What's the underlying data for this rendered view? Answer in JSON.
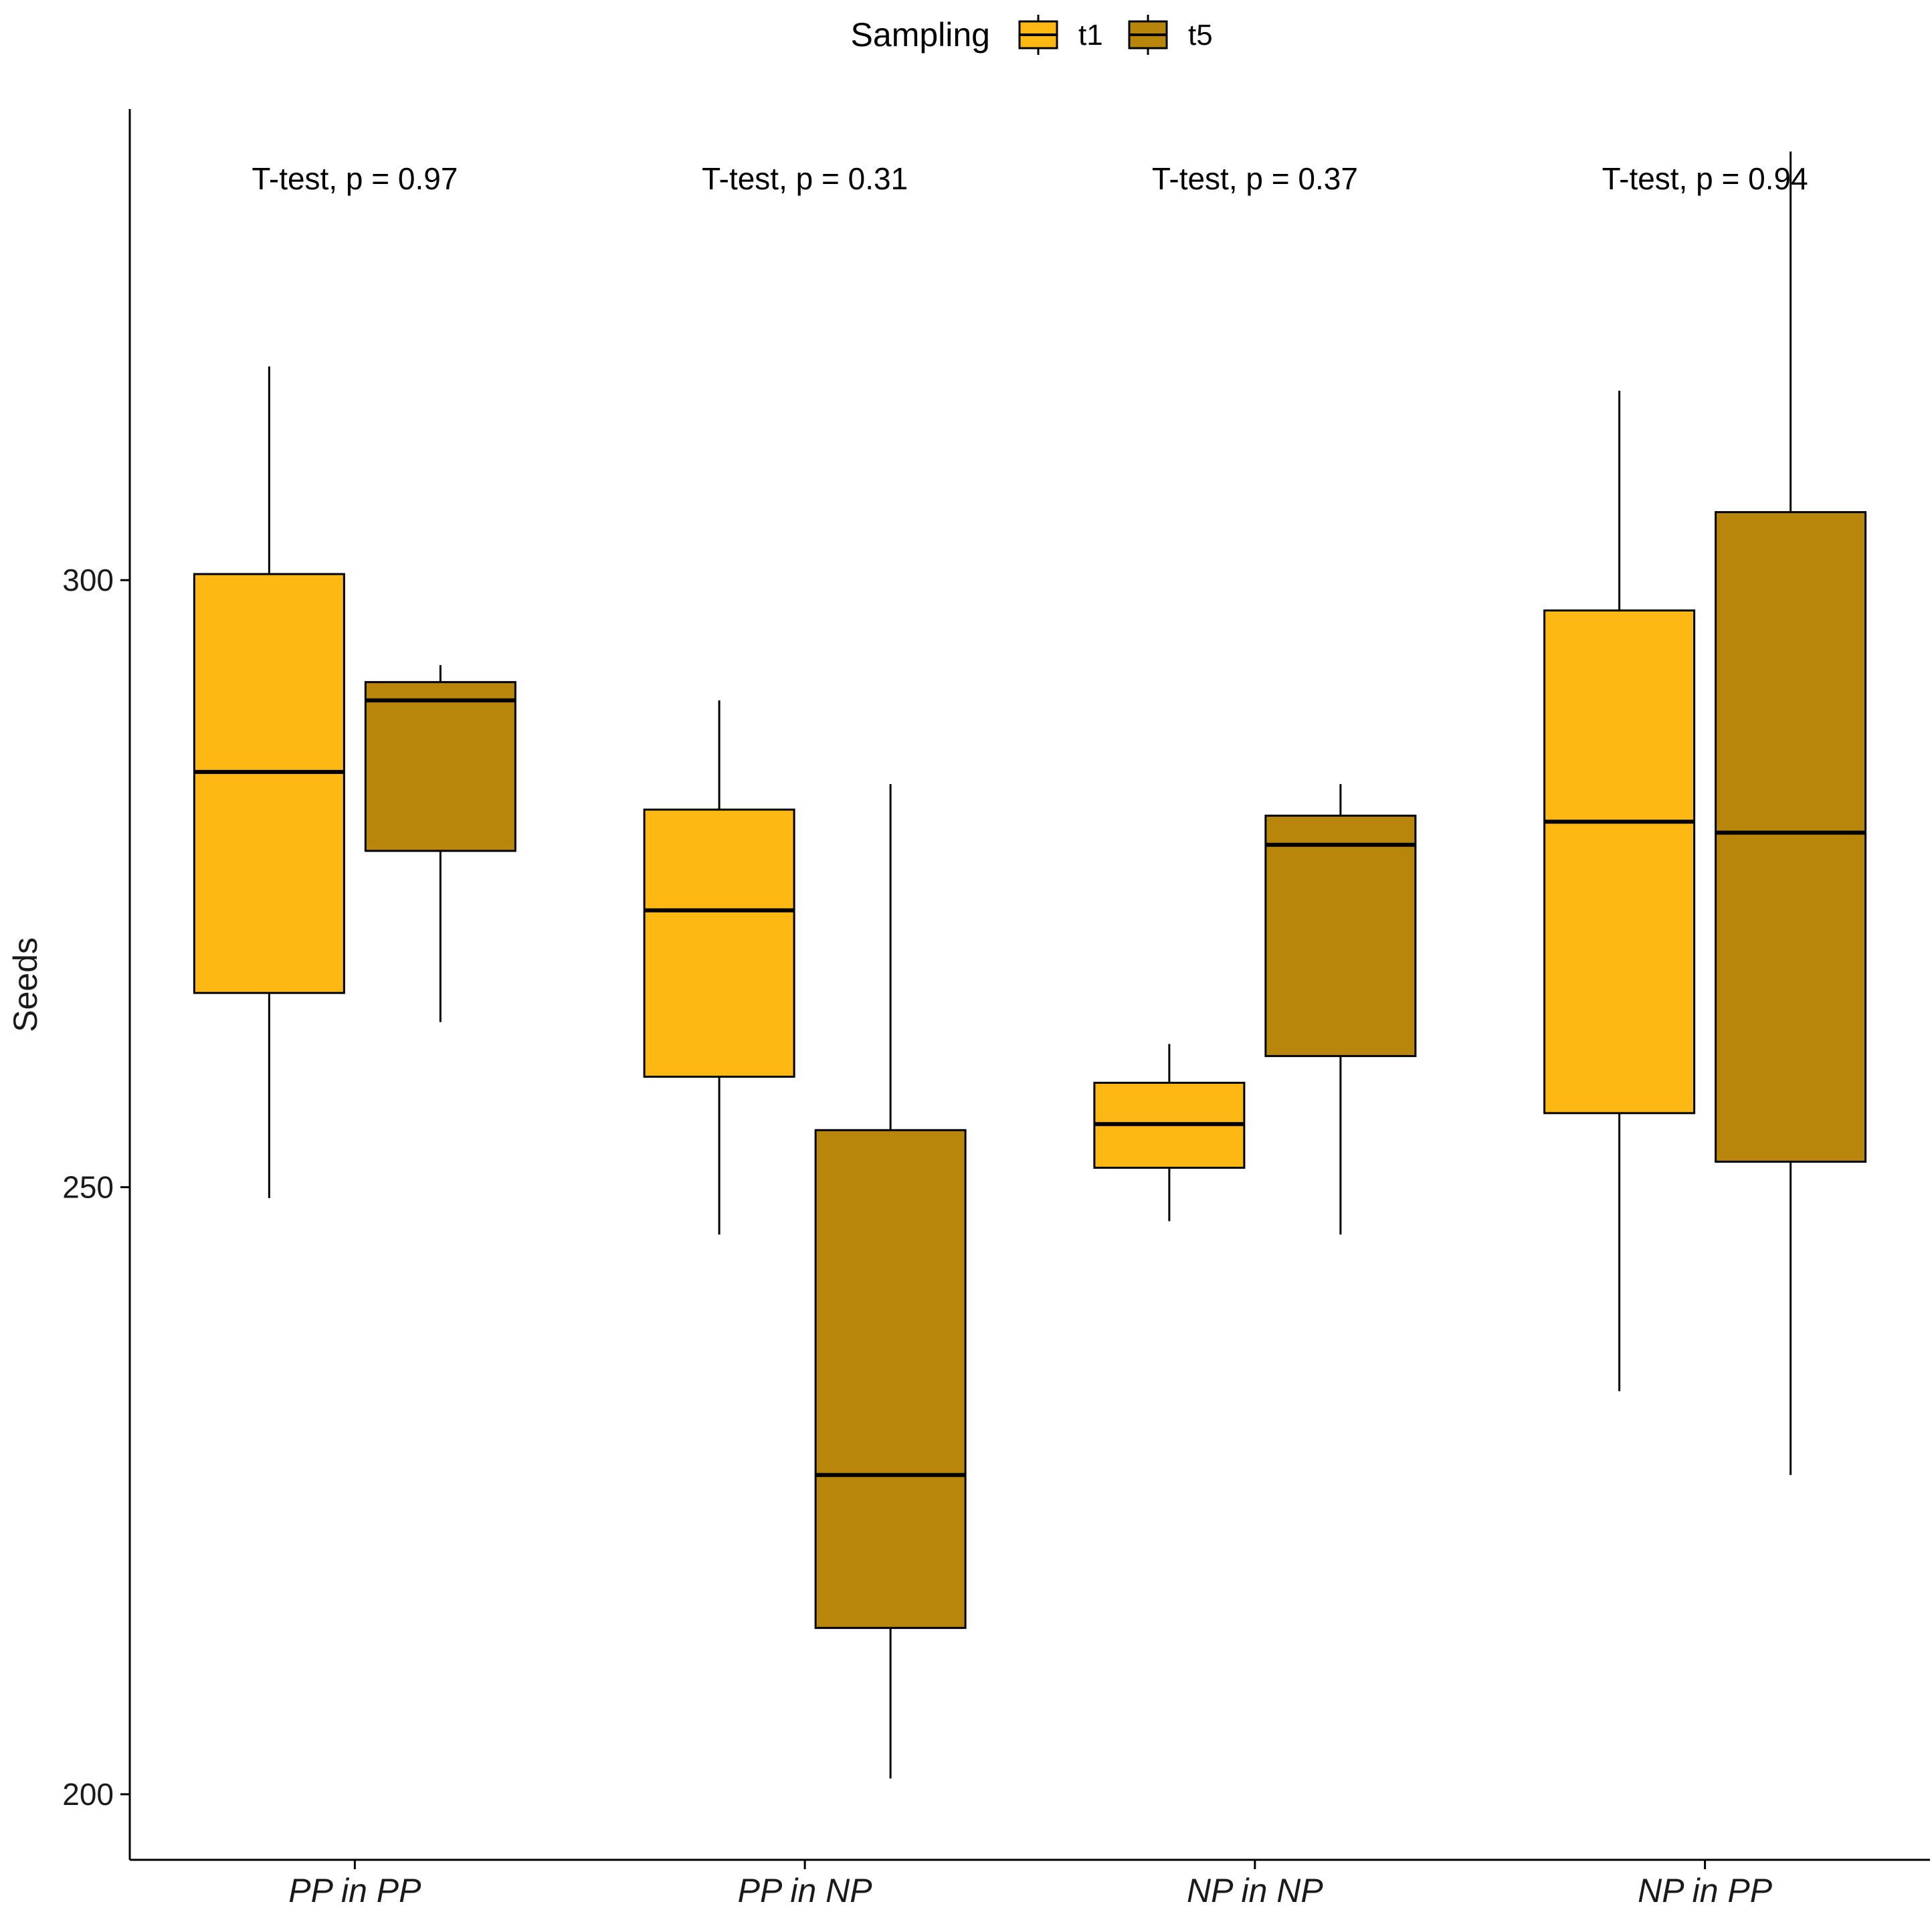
{
  "chart_data": {
    "type": "boxplot",
    "title": "",
    "xlabel": "",
    "ylabel": "Seeds",
    "ylim": [
      194.6,
      338.8
    ],
    "yticks": [
      200,
      250,
      300
    ],
    "categories": [
      "PP in PP",
      "PP in NP",
      "NP in NP",
      "NP in PP"
    ],
    "legend": {
      "title": "Sampling",
      "position": "top",
      "entries": [
        "t1",
        "t5"
      ]
    },
    "colors": {
      "t1": "#FDB813",
      "t5": "#B8860B"
    },
    "series": [
      {
        "name": "t1",
        "boxes": [
          {
            "whisker_low": 249.1,
            "q1": 266.0,
            "median": 284.2,
            "q3": 300.5,
            "whisker_high": 317.6
          },
          {
            "whisker_low": 246.1,
            "q1": 259.1,
            "median": 272.8,
            "q3": 281.1,
            "whisker_high": 290.1
          },
          {
            "whisker_low": 247.2,
            "q1": 251.6,
            "median": 255.2,
            "q3": 258.6,
            "whisker_high": 261.8
          },
          {
            "whisker_low": 233.2,
            "q1": 256.1,
            "median": 280.1,
            "q3": 297.5,
            "whisker_high": 315.6
          }
        ]
      },
      {
        "name": "t5",
        "boxes": [
          {
            "whisker_low": 263.6,
            "q1": 277.7,
            "median": 290.1,
            "q3": 291.6,
            "whisker_high": 293.0
          },
          {
            "whisker_low": 201.3,
            "q1": 213.7,
            "median": 226.3,
            "q3": 254.7,
            "whisker_high": 283.2
          },
          {
            "whisker_low": 246.1,
            "q1": 260.8,
            "median": 278.2,
            "q3": 280.6,
            "whisker_high": 283.2
          },
          {
            "whisker_low": 226.3,
            "q1": 252.1,
            "median": 279.2,
            "q3": 305.6,
            "whisker_high": 335.3
          }
        ]
      }
    ],
    "annotations": [
      "T-test, p = 0.97",
      "T-test, p = 0.31",
      "T-test, p = 0.37",
      "T-test, p = 0.94"
    ]
  }
}
